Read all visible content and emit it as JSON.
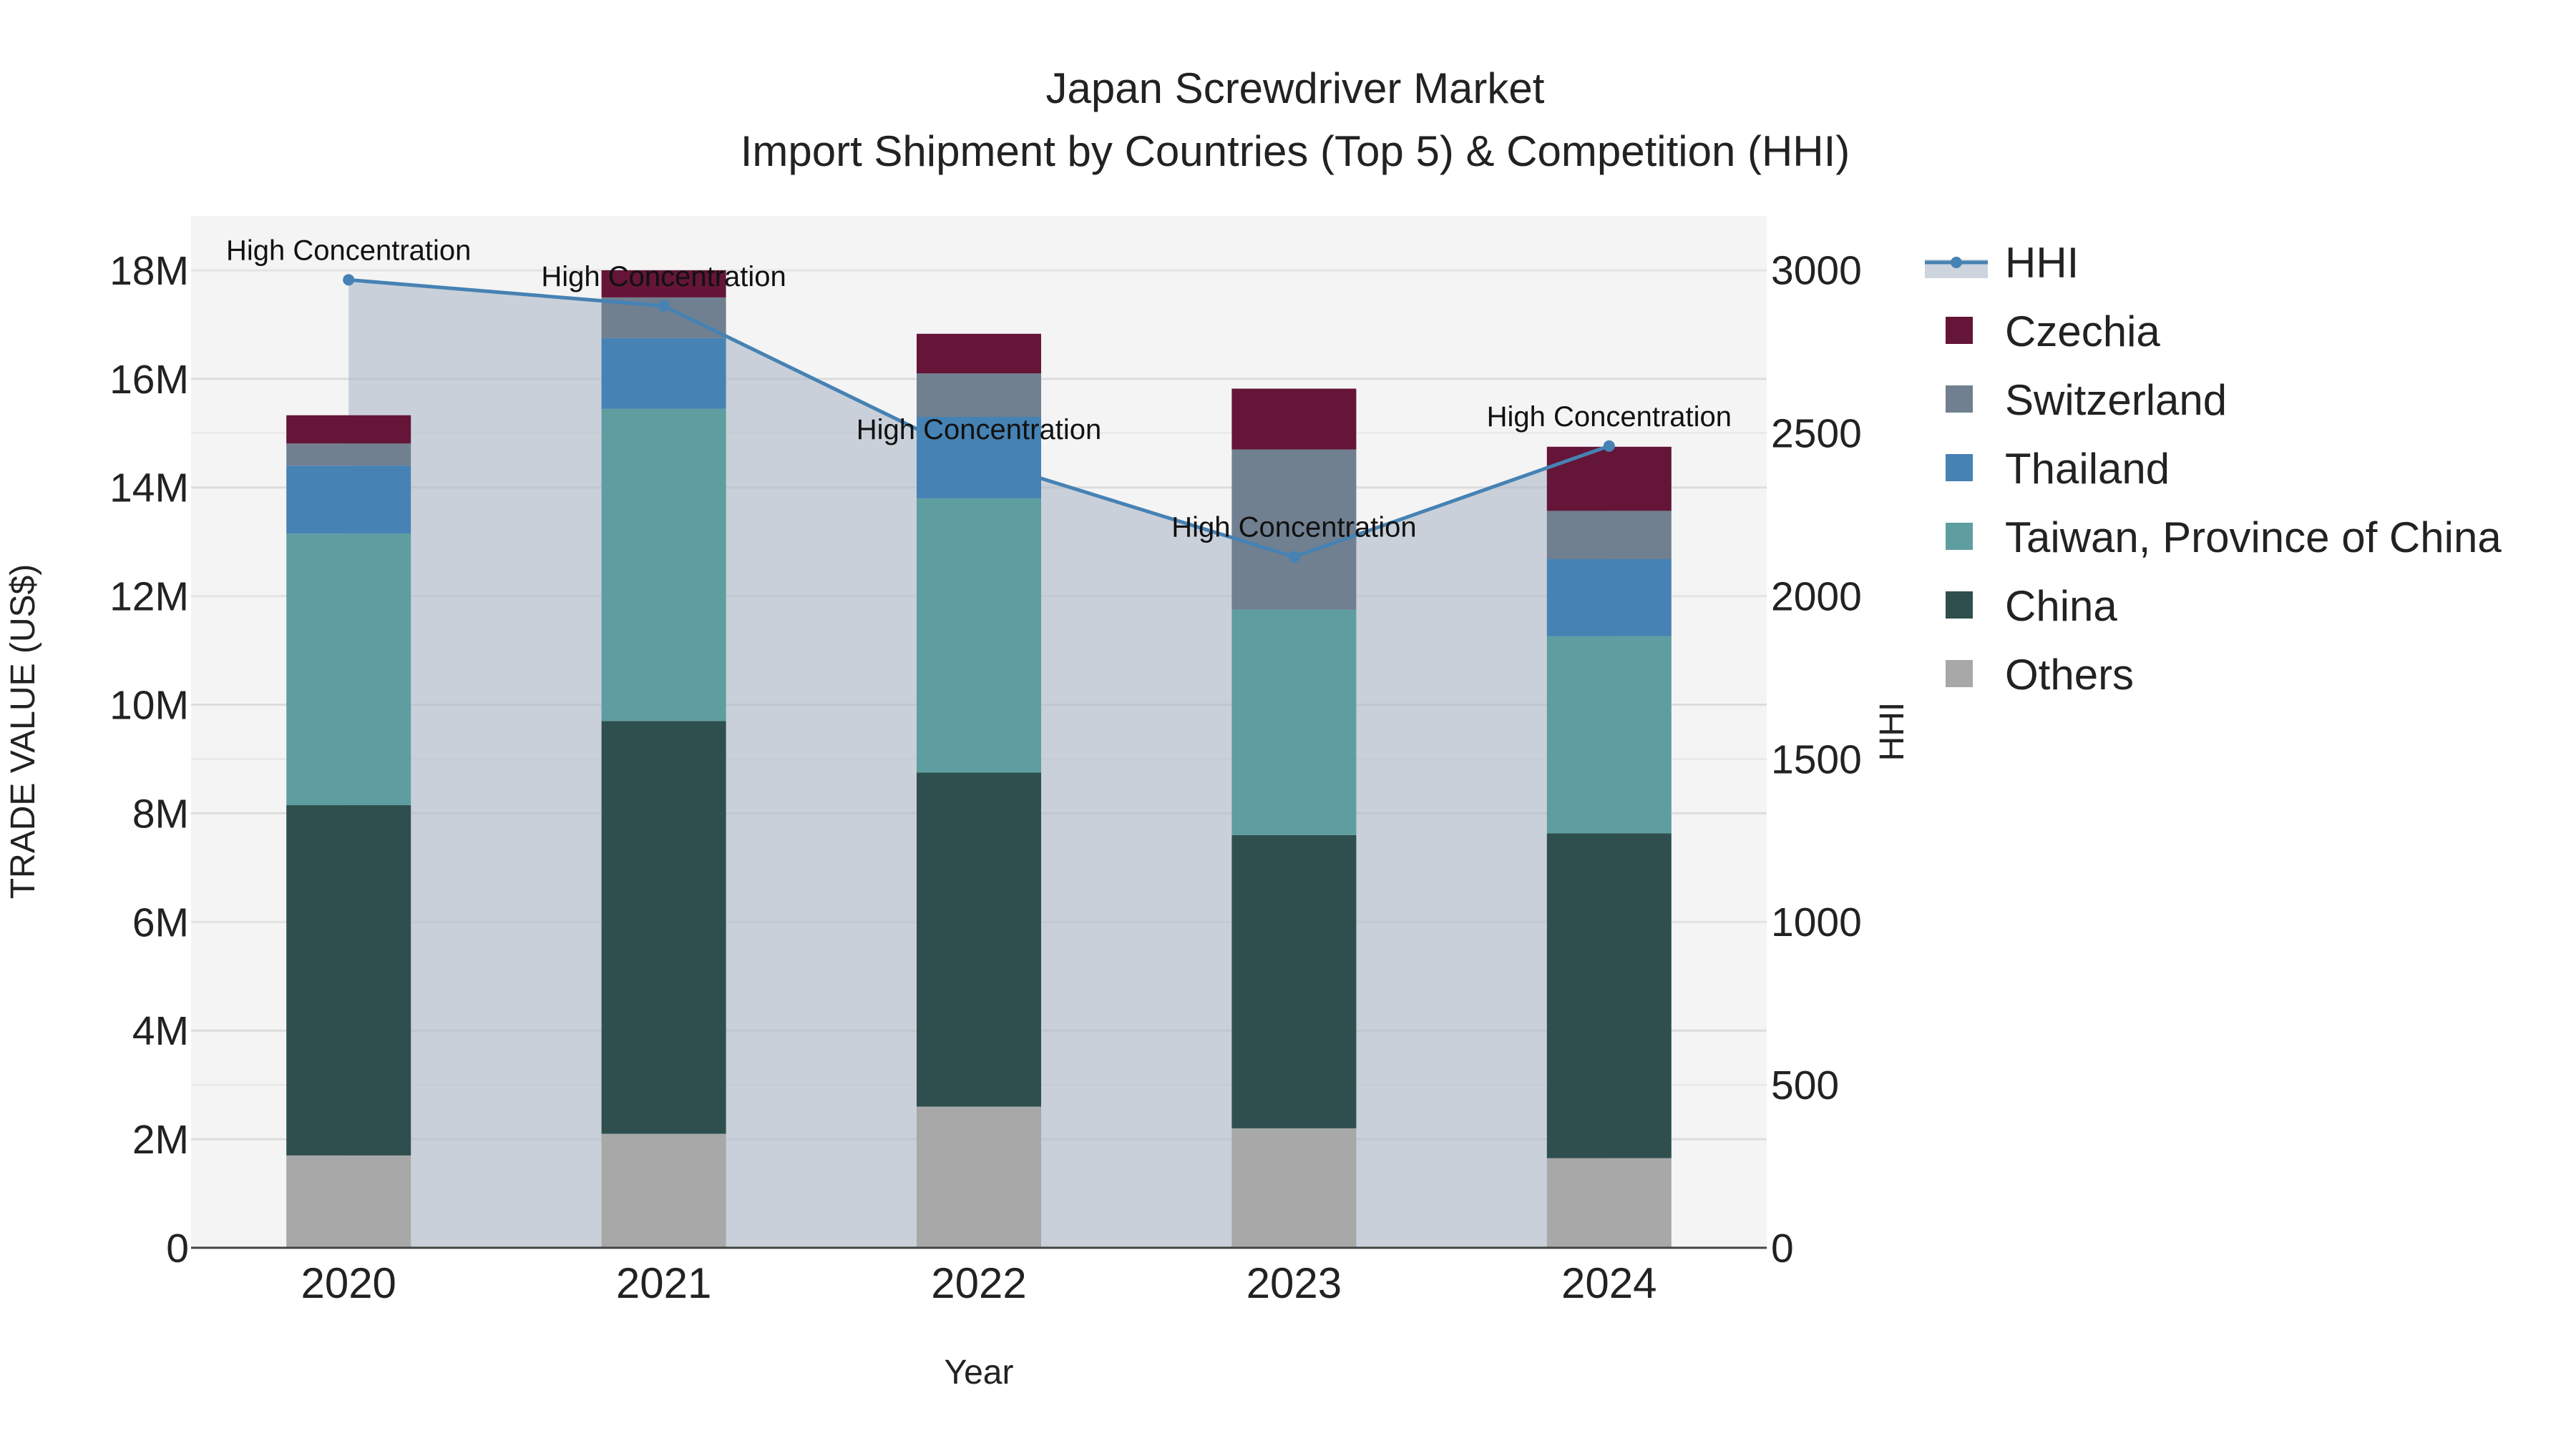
{
  "chart_data": {
    "type": "bar",
    "title": "Japan Screwdriver Market",
    "subtitle": "Import Shipment by Countries (Top 5) & Competition (HHI)",
    "xlabel": "Year",
    "ylabel": "TRADE VALUE (US$)",
    "y2label": "HHI",
    "categories": [
      "2020",
      "2021",
      "2022",
      "2023",
      "2024"
    ],
    "ylim": [
      0,
      19000000
    ],
    "y2lim": [
      0,
      3166
    ],
    "yticks": [
      {
        "value": 0,
        "label": "0"
      },
      {
        "value": 2000000,
        "label": "2M"
      },
      {
        "value": 4000000,
        "label": "4M"
      },
      {
        "value": 6000000,
        "label": "6M"
      },
      {
        "value": 8000000,
        "label": "8M"
      },
      {
        "value": 10000000,
        "label": "10M"
      },
      {
        "value": 12000000,
        "label": "12M"
      },
      {
        "value": 14000000,
        "label": "14M"
      },
      {
        "value": 16000000,
        "label": "16M"
      },
      {
        "value": 18000000,
        "label": "18M"
      }
    ],
    "y2ticks": [
      {
        "value": 0,
        "label": "0"
      },
      {
        "value": 500,
        "label": "500"
      },
      {
        "value": 1000,
        "label": "1000"
      },
      {
        "value": 1500,
        "label": "1500"
      },
      {
        "value": 2000,
        "label": "2000"
      },
      {
        "value": 2500,
        "label": "2500"
      },
      {
        "value": 3000,
        "label": "3000"
      }
    ],
    "series": [
      {
        "name": "Others",
        "color": "#a8a8a8",
        "values": [
          1700000,
          2100000,
          2600000,
          2200000,
          1650000
        ]
      },
      {
        "name": "China",
        "color": "#2f4f4f",
        "values": [
          6450000,
          7600000,
          6150000,
          5400000,
          5980000
        ]
      },
      {
        "name": "Taiwan, Province of China",
        "color": "#5f9ea0",
        "values": [
          5000000,
          5750000,
          5050000,
          4150000,
          3630000
        ]
      },
      {
        "name": "Thailand",
        "color": "#4682b4",
        "values": [
          1250000,
          1300000,
          1500000,
          0,
          1420000
        ]
      },
      {
        "name": "Switzerland",
        "color": "#708090",
        "values": [
          410000,
          750000,
          800000,
          2950000,
          890000
        ]
      },
      {
        "name": "Czechia",
        "color": "#641538",
        "values": [
          520000,
          500000,
          730000,
          1120000,
          1180000
        ]
      }
    ],
    "hhi": {
      "name": "HHI",
      "color": "#4682b4",
      "values": [
        2970,
        2890,
        2420,
        2120,
        2460
      ],
      "annotations": [
        "High Concentration",
        "High Concentration",
        "High Concentration",
        "High Concentration",
        "High Concentration"
      ]
    },
    "legend": [
      "HHI",
      "Czechia",
      "Switzerland",
      "Thailand",
      "Taiwan, Province of China",
      "China",
      "Others"
    ],
    "legend_position": "right",
    "grid": true
  }
}
